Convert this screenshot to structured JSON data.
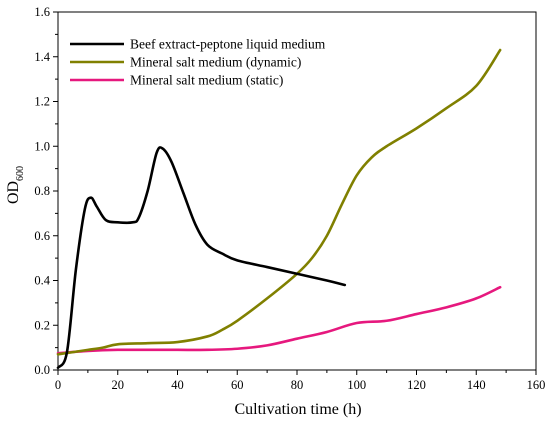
{
  "chart_data": {
    "type": "line",
    "xlabel": "Cultivation time (h)",
    "ylabel": {
      "main": "OD",
      "sub": "600"
    },
    "xlim": [
      0,
      160
    ],
    "ylim": [
      0,
      1.6
    ],
    "xticks": [
      0,
      20,
      40,
      60,
      80,
      100,
      120,
      140,
      160
    ],
    "yticks": [
      0.0,
      0.2,
      0.4,
      0.6,
      0.8,
      1.0,
      1.2,
      1.4,
      1.6
    ],
    "ytick_labels": [
      "0.0",
      "0.2",
      "0.4",
      "0.6",
      "0.8",
      "1.0",
      "1.2",
      "1.4",
      "1.6"
    ],
    "grid": false,
    "legend_position": "top-left",
    "series": [
      {
        "name": "Beef extract-peptone liquid medium",
        "color": "#000000",
        "x": [
          0,
          3,
          6,
          9,
          11,
          13,
          16,
          20,
          25,
          27,
          30,
          33,
          35,
          38,
          42,
          46,
          50,
          55,
          60,
          70,
          80,
          90,
          96
        ],
        "y": [
          0.01,
          0.08,
          0.45,
          0.72,
          0.77,
          0.73,
          0.67,
          0.66,
          0.66,
          0.68,
          0.8,
          0.97,
          0.99,
          0.93,
          0.79,
          0.65,
          0.56,
          0.52,
          0.49,
          0.46,
          0.43,
          0.4,
          0.38
        ]
      },
      {
        "name": "Mineral salt medium (dynamic)",
        "color": "#808000",
        "x": [
          0,
          5,
          10,
          15,
          20,
          30,
          40,
          50,
          55,
          60,
          70,
          80,
          85,
          90,
          95,
          100,
          105,
          110,
          120,
          130,
          140,
          148
        ],
        "y": [
          0.07,
          0.08,
          0.09,
          0.1,
          0.115,
          0.12,
          0.125,
          0.15,
          0.18,
          0.22,
          0.32,
          0.43,
          0.5,
          0.6,
          0.74,
          0.87,
          0.95,
          1.0,
          1.08,
          1.17,
          1.27,
          1.43
        ]
      },
      {
        "name": "Mineral salt medium (static)",
        "color": "#e6187e",
        "x": [
          0,
          10,
          20,
          30,
          40,
          50,
          60,
          70,
          80,
          90,
          100,
          110,
          120,
          130,
          140,
          148
        ],
        "y": [
          0.075,
          0.085,
          0.09,
          0.09,
          0.09,
          0.09,
          0.095,
          0.11,
          0.14,
          0.17,
          0.21,
          0.22,
          0.25,
          0.28,
          0.32,
          0.37
        ]
      }
    ]
  }
}
